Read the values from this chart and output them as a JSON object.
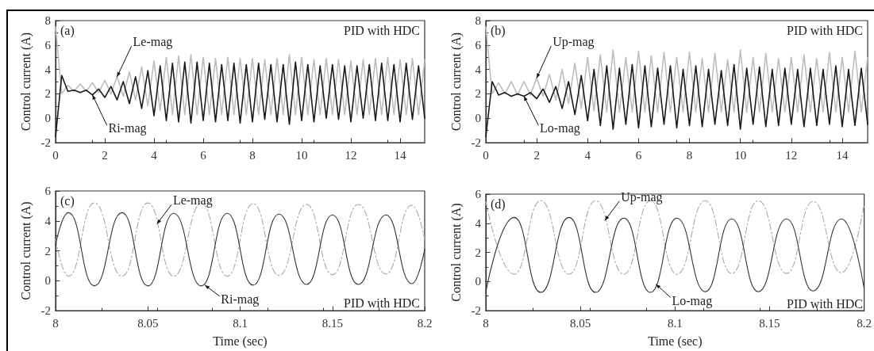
{
  "chart_data": [
    {
      "type": "line",
      "ylabel": "Control current (A)",
      "xlim": [
        0,
        15
      ],
      "xticks": [
        0,
        2,
        4,
        6,
        8,
        10,
        12,
        14
      ],
      "ylim": [
        -2,
        8
      ],
      "yticks": [
        -2,
        0,
        2,
        4,
        6,
        8
      ],
      "x": [
        0,
        0.25,
        0.5,
        0.75,
        1,
        1.25,
        1.5,
        1.75,
        2,
        2.25,
        2.5,
        2.75,
        3,
        3.25,
        3.5,
        3.75,
        4,
        4.25,
        4.5,
        4.75,
        5,
        5.25,
        5.5,
        5.75,
        6,
        6.25,
        6.5,
        6.75,
        7,
        7.25,
        7.5,
        7.75,
        8,
        8.25,
        8.5,
        8.75,
        9,
        9.25,
        9.5,
        9.75,
        10,
        10.25,
        10.5,
        10.75,
        11,
        11.25,
        11.5,
        11.75,
        12,
        12.25,
        12.5,
        12.75,
        13,
        13.25,
        13.5,
        13.75,
        14,
        14.25,
        14.5,
        14.75,
        15
      ],
      "series": [
        {
          "color": "#bdbdbd",
          "values": [
            7.5,
            2.0,
            2.7,
            2.2,
            2.8,
            2.2,
            2.9,
            2.1,
            3.1,
            2.0,
            3.4,
            1.8,
            3.8,
            1.5,
            4.2,
            1.0,
            4.7,
            0.6,
            5.0,
            0.3,
            5.1,
            0.3,
            5.2,
            0.3,
            5.0,
            0.3,
            4.9,
            0.3,
            5.0,
            0.3,
            4.9,
            0.3,
            4.9,
            0.3,
            4.8,
            0.3,
            4.9,
            0.3,
            5.2,
            0.3,
            5.0,
            0.3,
            4.8,
            0.3,
            4.9,
            0.3,
            4.8,
            0.3,
            4.7,
            0.3,
            4.8,
            0.3,
            4.9,
            0.3,
            5.0,
            0.3,
            4.8,
            0.3,
            4.9,
            0.3,
            4.8
          ]
        },
        {
          "color": "#1a1a1a",
          "values": [
            -1.5,
            3.5,
            2.2,
            2.3,
            2.1,
            2.3,
            1.9,
            2.4,
            1.7,
            2.6,
            1.5,
            3.0,
            1.2,
            3.4,
            0.8,
            3.9,
            0.2,
            4.3,
            -0.2,
            4.5,
            -0.3,
            4.6,
            -0.4,
            4.6,
            -0.2,
            4.5,
            -0.3,
            4.4,
            -0.2,
            4.5,
            -0.4,
            4.4,
            -0.3,
            4.5,
            -0.1,
            4.4,
            -0.3,
            4.4,
            -0.5,
            4.6,
            -0.2,
            4.4,
            -0.3,
            4.3,
            0.0,
            4.4,
            -0.1,
            4.3,
            -0.3,
            4.3,
            0.0,
            4.4,
            -0.2,
            4.5,
            -0.2,
            4.4,
            -0.3,
            4.5,
            -0.1,
            4.3,
            0.0
          ]
        }
      ],
      "annotations": [
        "(a)",
        "PID with HDC",
        {
          "text": "Le-mag",
          "x": 2.5,
          "y": 3.4
        },
        {
          "text": "Ri-mag",
          "x": 1.5,
          "y": 1.9
        }
      ]
    },
    {
      "type": "line",
      "ylabel": "Control current (A)",
      "xlim": [
        0,
        15
      ],
      "xticks": [
        0,
        2,
        4,
        6,
        8,
        10,
        12,
        14
      ],
      "ylim": [
        -2,
        8
      ],
      "yticks": [
        -2,
        0,
        2,
        4,
        6,
        8
      ],
      "x": [
        0,
        0.25,
        0.5,
        0.75,
        1,
        1.25,
        1.5,
        1.75,
        2,
        2.25,
        2.5,
        2.75,
        3,
        3.25,
        3.5,
        3.75,
        4,
        4.25,
        4.5,
        4.75,
        5,
        5.25,
        5.5,
        5.75,
        6,
        6.25,
        6.5,
        6.75,
        7,
        7.25,
        7.5,
        7.75,
        8,
        8.25,
        8.5,
        8.75,
        9,
        9.25,
        9.5,
        9.75,
        10,
        10.25,
        10.5,
        10.75,
        11,
        11.25,
        11.5,
        11.75,
        12,
        12.25,
        12.5,
        12.75,
        13,
        13.25,
        13.5,
        13.75,
        14,
        14.25,
        14.5,
        14.75,
        15
      ],
      "series": [
        {
          "color": "#bdbdbd",
          "values": [
            7.5,
            2.0,
            2.9,
            2.0,
            3.0,
            1.9,
            3.0,
            1.9,
            3.3,
            1.8,
            3.6,
            1.5,
            4.0,
            1.2,
            4.5,
            0.8,
            5.0,
            0.6,
            5.2,
            0.5,
            5.6,
            0.5,
            5.0,
            0.5,
            5.5,
            0.5,
            5.1,
            0.5,
            5.4,
            0.5,
            5.0,
            0.5,
            5.4,
            0.5,
            4.9,
            0.5,
            5.3,
            0.5,
            4.8,
            0.5,
            5.6,
            0.5,
            5.0,
            0.5,
            5.3,
            0.5,
            4.9,
            0.5,
            5.0,
            0.5,
            5.2,
            0.5,
            4.9,
            0.5,
            5.4,
            0.5,
            5.0,
            0.5,
            5.5,
            0.5,
            5.0
          ]
        },
        {
          "color": "#1a1a1a",
          "values": [
            -1.5,
            3.0,
            1.9,
            2.1,
            1.8,
            2.0,
            1.8,
            2.1,
            1.6,
            2.4,
            1.3,
            2.6,
            0.8,
            3.0,
            0.3,
            3.5,
            -0.2,
            4.0,
            -0.6,
            4.3,
            -0.9,
            4.1,
            -0.5,
            4.4,
            -0.8,
            4.3,
            -0.7,
            4.1,
            -0.5,
            4.3,
            -0.8,
            4.0,
            -0.6,
            4.3,
            -0.7,
            4.0,
            -0.5,
            3.9,
            -0.6,
            4.4,
            -0.9,
            4.1,
            -0.5,
            4.2,
            -0.7,
            4.0,
            -0.6,
            4.1,
            -0.5,
            4.0,
            -0.7,
            4.1,
            -0.6,
            4.0,
            -0.5,
            4.3,
            -0.7,
            4.0,
            -0.6,
            4.1,
            -0.5
          ]
        }
      ],
      "annotations": [
        "(b)",
        "PID with HDC",
        {
          "text": "Up-mag",
          "x": 2.0,
          "y": 3.3
        },
        {
          "text": "Lo-mag",
          "x": 1.5,
          "y": 1.8
        }
      ]
    },
    {
      "type": "line",
      "xlabel": "Time (sec)",
      "ylabel": "Control current (A)",
      "xlim": [
        8,
        8.2
      ],
      "xticks": [
        8,
        8.05,
        8.1,
        8.15,
        8.2
      ],
      "ylim": [
        -2,
        6
      ],
      "yticks": [
        -2,
        0,
        2,
        4,
        6
      ],
      "x": [
        8,
        8.007,
        8.021,
        8.036,
        8.05,
        8.064,
        8.079,
        8.093,
        8.107,
        8.121,
        8.136,
        8.15,
        8.164,
        8.179,
        8.193,
        8.2
      ],
      "series": [
        {
          "color": "#aaaaaa",
          "line_style": "dashed",
          "values": [
            2.8,
            0.3,
            5.2,
            0.3,
            5.2,
            0.3,
            5.15,
            0.3,
            5.15,
            0.35,
            5.1,
            0.4,
            5.1,
            0.45,
            5.05,
            2.75
          ]
        },
        {
          "color": "#333333",
          "line_style": "solid",
          "values": [
            2.4,
            4.55,
            -0.35,
            4.55,
            -0.35,
            4.5,
            -0.35,
            4.5,
            -0.3,
            4.45,
            -0.25,
            4.4,
            -0.25,
            4.4,
            -0.2,
            2.1
          ]
        }
      ],
      "annotations": [
        "(c)",
        "PID with HDC",
        {
          "text": "Le-mag",
          "x": 8.055,
          "y": 3.8
        },
        {
          "text": "Ri-mag",
          "x": 8.081,
          "y": -0.3
        }
      ]
    },
    {
      "type": "line",
      "xlabel": "Time (sec)",
      "ylabel": "Control current (A)",
      "xlim": [
        8,
        8.2
      ],
      "xticks": [
        8,
        8.05,
        8.1,
        8.15,
        8.2
      ],
      "ylim": [
        -2,
        6
      ],
      "yticks": [
        -2,
        0,
        2,
        4,
        6
      ],
      "x": [
        8,
        8.015,
        8.029,
        8.044,
        8.058,
        8.073,
        8.087,
        8.101,
        8.116,
        8.13,
        8.144,
        8.159,
        8.173,
        8.188,
        8.2
      ],
      "series": [
        {
          "color": "#aaaaaa",
          "line_style": "dashed",
          "values": [
            5.5,
            0.5,
            5.55,
            0.5,
            5.55,
            0.5,
            5.55,
            0.5,
            5.55,
            0.55,
            5.55,
            0.55,
            5.5,
            0.6,
            5.3
          ]
        },
        {
          "color": "#333333",
          "line_style": "solid",
          "values": [
            -0.7,
            4.4,
            -0.75,
            4.4,
            -0.75,
            4.35,
            -0.75,
            4.35,
            -0.7,
            4.3,
            -0.7,
            4.3,
            -0.65,
            4.3,
            -0.5
          ]
        }
      ],
      "annotations": [
        "(d)",
        "PID with HDC",
        {
          "text": "Up-mag",
          "x": 8.063,
          "y": 4.2
        },
        {
          "text": "Lo-mag",
          "x": 8.09,
          "y": -0.2
        }
      ]
    }
  ]
}
